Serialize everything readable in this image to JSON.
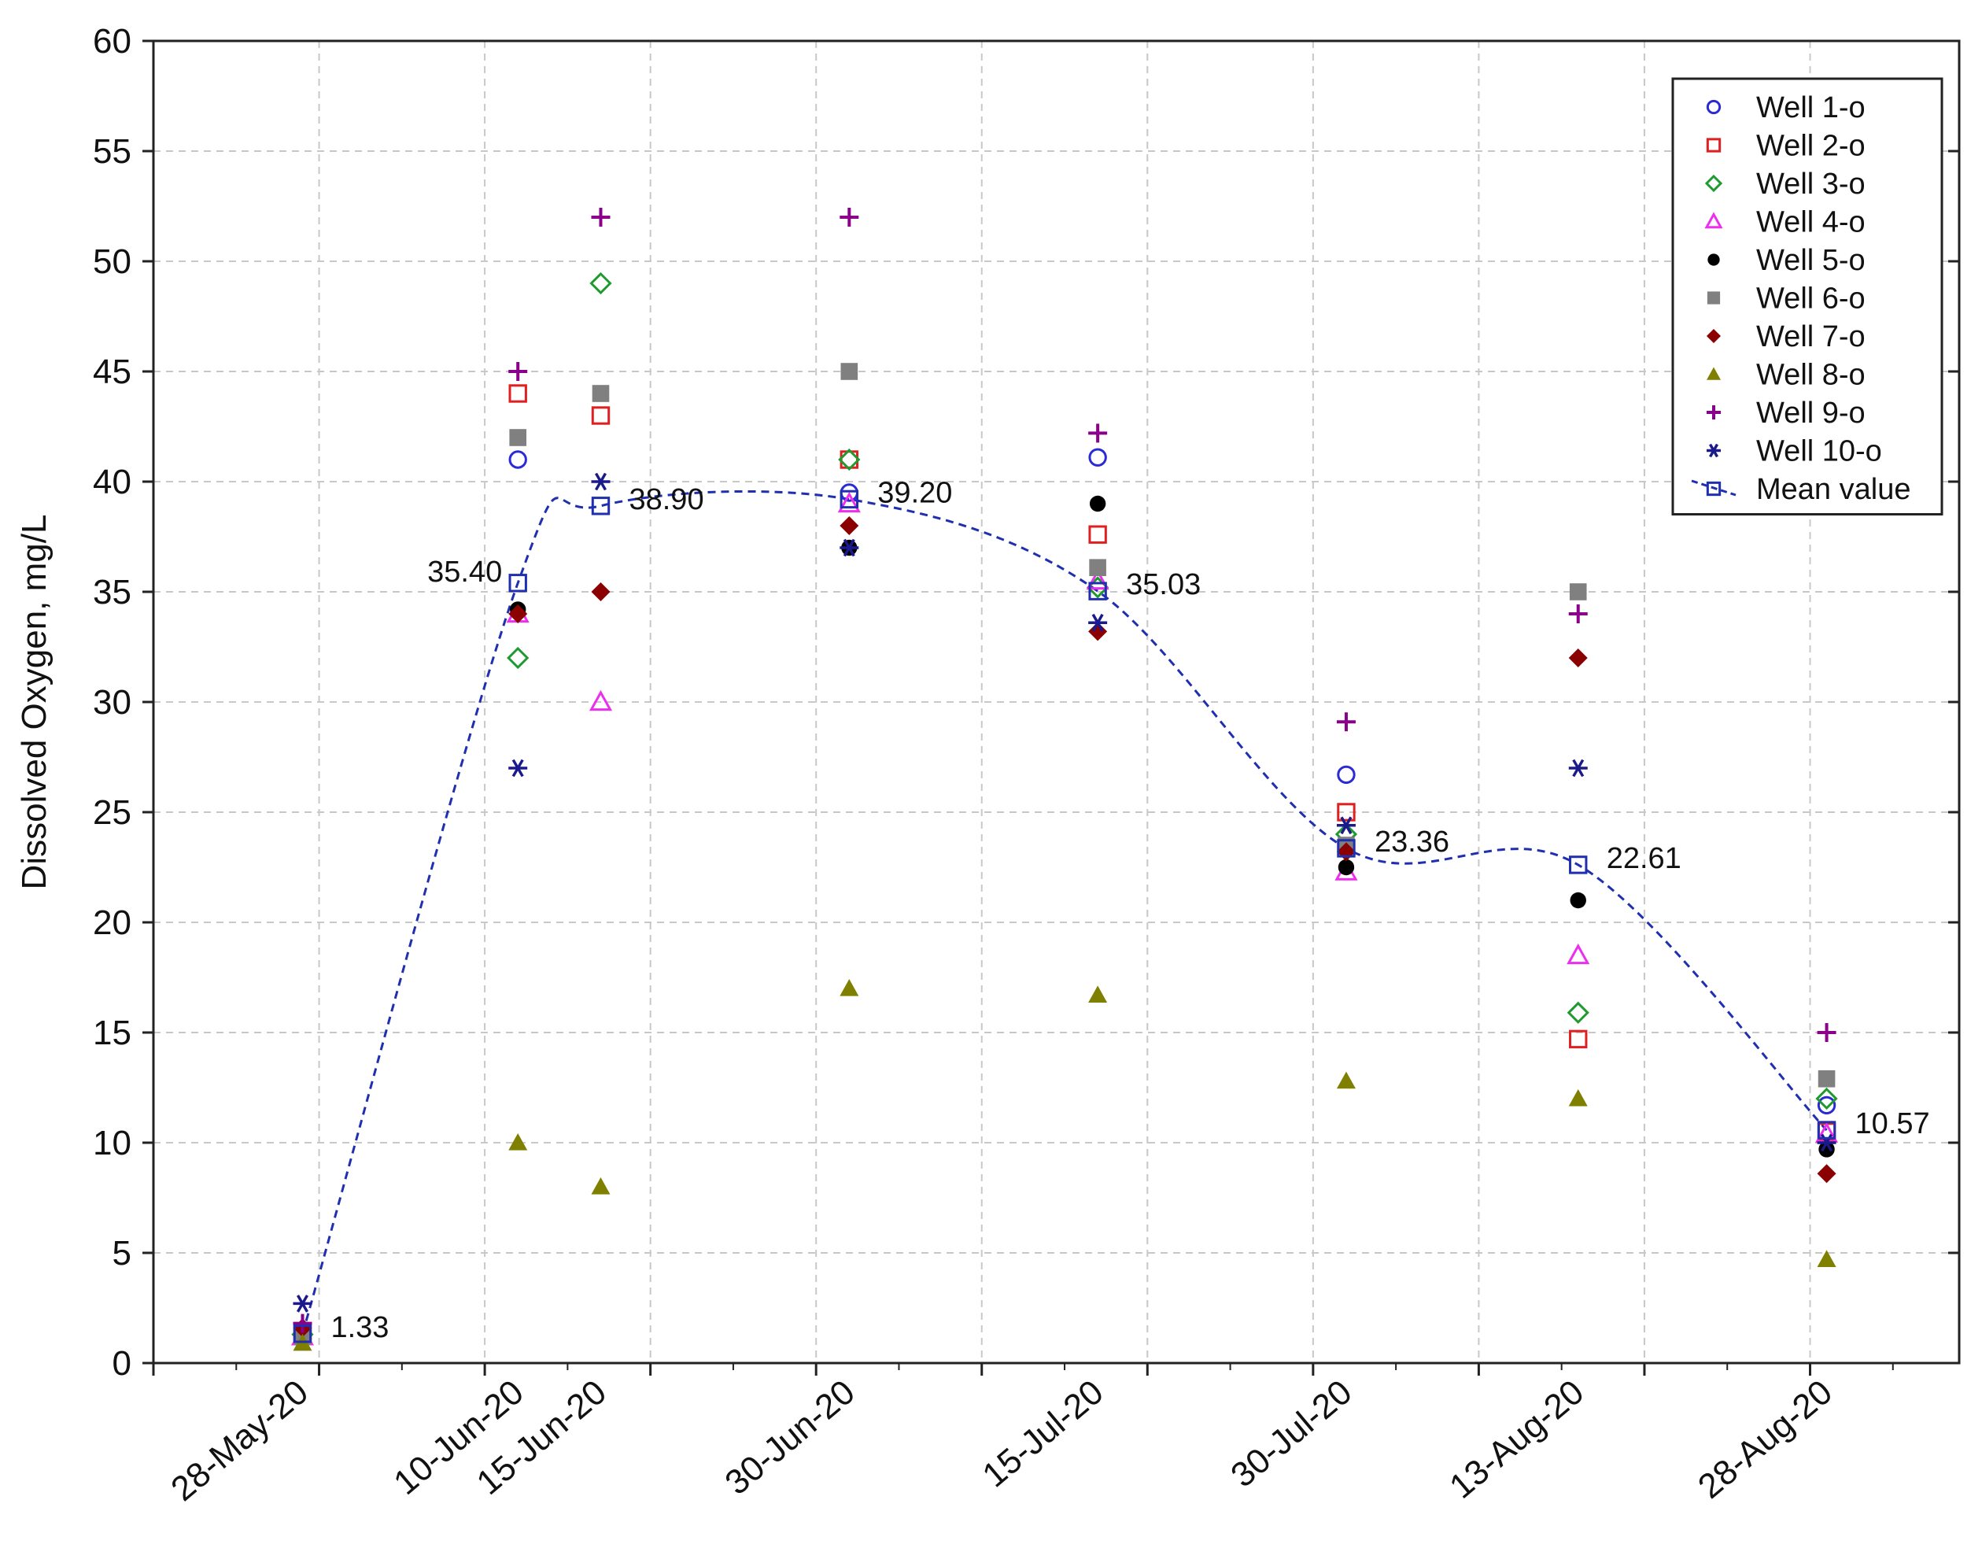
{
  "chart_data": {
    "type": "scatter",
    "title": "",
    "xlabel": "",
    "ylabel": "Dissolved Oxygen, mg/L",
    "ylim": [
      0,
      60
    ],
    "yticks": [
      0,
      5,
      10,
      15,
      20,
      25,
      30,
      35,
      40,
      45,
      50,
      55,
      60
    ],
    "ytick_labels": [
      "0",
      "5",
      "10",
      "15",
      "20",
      "25",
      "30",
      "35",
      "40",
      "45",
      "50",
      "55",
      "60"
    ],
    "x_range_days": [
      -9,
      100
    ],
    "x_start_date": "28-May-20",
    "x_ticks": [
      {
        "label": "28-May-20",
        "day": 0
      },
      {
        "label": "10-Jun-20",
        "day": 13
      },
      {
        "label": "15-Jun-20",
        "day": 18
      },
      {
        "label": "30-Jun-20",
        "day": 33
      },
      {
        "label": "15-Jul-20",
        "day": 48
      },
      {
        "label": "30-Jul-20",
        "day": 63
      },
      {
        "label": "13-Aug-20",
        "day": 77
      },
      {
        "label": "28-Aug-20",
        "day": 92
      }
    ],
    "grid_days": [
      -9,
      1,
      11,
      21,
      31,
      41,
      51,
      61,
      71,
      81,
      91
    ],
    "grid": true,
    "legend_position": "top-right",
    "series": [
      {
        "name": "Well 1-o",
        "marker": "circle-open",
        "color": "#2b2bd6",
        "points": [
          [
            0,
            1.3
          ],
          [
            13,
            41
          ],
          [
            33,
            39.5
          ],
          [
            48,
            41.1
          ],
          [
            63,
            26.7
          ],
          [
            92,
            11.7
          ]
        ]
      },
      {
        "name": "Well 2-o",
        "marker": "square-open",
        "color": "#e02020",
        "points": [
          [
            0,
            1.3
          ],
          [
            13,
            44
          ],
          [
            18,
            43
          ],
          [
            33,
            41
          ],
          [
            48,
            37.6
          ],
          [
            63,
            25
          ],
          [
            77,
            14.7
          ],
          [
            92,
            10.5
          ]
        ]
      },
      {
        "name": "Well 3-o",
        "marker": "diamond-open",
        "color": "#1e9a2e",
        "points": [
          [
            0,
            1.3
          ],
          [
            13,
            32
          ],
          [
            18,
            49
          ],
          [
            33,
            41
          ],
          [
            48,
            35.2
          ],
          [
            63,
            24
          ],
          [
            77,
            15.9
          ],
          [
            92,
            12
          ]
        ]
      },
      {
        "name": "Well 4-o",
        "marker": "triangle-open",
        "color": "#ee2eee",
        "points": [
          [
            0,
            1.2
          ],
          [
            13,
            34
          ],
          [
            18,
            30
          ],
          [
            33,
            39
          ],
          [
            48,
            35.5
          ],
          [
            63,
            22.3
          ],
          [
            77,
            18.5
          ],
          [
            92,
            10.4
          ]
        ]
      },
      {
        "name": "Well 5-o",
        "marker": "circle-filled",
        "color": "#000000",
        "points": [
          [
            0,
            1.1
          ],
          [
            13,
            34.2
          ],
          [
            33,
            37
          ],
          [
            48,
            39
          ],
          [
            63,
            22.5
          ],
          [
            77,
            21
          ],
          [
            92,
            9.7
          ]
        ]
      },
      {
        "name": "Well 6-o",
        "marker": "square-filled",
        "color": "#808080",
        "points": [
          [
            0,
            1.2
          ],
          [
            13,
            42
          ],
          [
            18,
            44
          ],
          [
            33,
            45
          ],
          [
            48,
            36.1
          ],
          [
            63,
            23.5
          ],
          [
            77,
            35
          ],
          [
            92,
            12.9
          ]
        ]
      },
      {
        "name": "Well 7-o",
        "marker": "diamond-filled",
        "color": "#8b0000",
        "points": [
          [
            0,
            1.6
          ],
          [
            13,
            34
          ],
          [
            18,
            35
          ],
          [
            33,
            38
          ],
          [
            48,
            33.2
          ],
          [
            63,
            23.2
          ],
          [
            77,
            32
          ],
          [
            92,
            8.6
          ]
        ]
      },
      {
        "name": "Well 8-o",
        "marker": "triangle-filled",
        "color": "#808000",
        "points": [
          [
            0,
            0.9
          ],
          [
            13,
            10
          ],
          [
            18,
            8
          ],
          [
            33,
            17
          ],
          [
            48,
            16.7
          ],
          [
            63,
            12.8
          ],
          [
            77,
            12
          ],
          [
            92,
            4.7
          ]
        ]
      },
      {
        "name": "Well 9-o",
        "marker": "plus",
        "color": "#8b008b",
        "points": [
          [
            0,
            1.8
          ],
          [
            13,
            45
          ],
          [
            18,
            52
          ],
          [
            33,
            52
          ],
          [
            48,
            42.2
          ],
          [
            63,
            29.1
          ],
          [
            77,
            34
          ],
          [
            92,
            15
          ]
        ]
      },
      {
        "name": "Well 10-o",
        "marker": "asterisk",
        "color": "#1a1a8c",
        "points": [
          [
            0,
            2.7
          ],
          [
            13,
            27
          ],
          [
            18,
            40
          ],
          [
            33,
            37
          ],
          [
            48,
            33.6
          ],
          [
            63,
            24.4
          ],
          [
            77,
            27
          ],
          [
            92,
            10
          ]
        ]
      }
    ],
    "mean_series": {
      "name": "Mean value",
      "marker": "square-open",
      "color": "#1f2fb0",
      "line": "dashed-smooth",
      "points": [
        [
          0,
          1.33
        ],
        [
          13,
          35.4
        ],
        [
          18,
          38.9
        ],
        [
          33,
          39.2
        ],
        [
          48,
          35.03
        ],
        [
          63,
          23.36
        ],
        [
          77,
          22.61
        ],
        [
          92,
          10.57
        ]
      ]
    },
    "annotations": [
      {
        "text": "1.33",
        "day": 0,
        "value": 1.33,
        "side": "right"
      },
      {
        "text": "35.40",
        "day": 13,
        "value": 35.4,
        "side": "left"
      },
      {
        "text": "38.90",
        "day": 18,
        "value": 38.9,
        "side": "right"
      },
      {
        "text": "39.20",
        "day": 33,
        "value": 39.2,
        "side": "right"
      },
      {
        "text": "35.03",
        "day": 48,
        "value": 35.03,
        "side": "right"
      },
      {
        "text": "23.36",
        "day": 63,
        "value": 23.36,
        "side": "right"
      },
      {
        "text": "22.61",
        "day": 77,
        "value": 22.61,
        "side": "right"
      },
      {
        "text": "10.57",
        "day": 92,
        "value": 10.57,
        "side": "right"
      }
    ]
  }
}
